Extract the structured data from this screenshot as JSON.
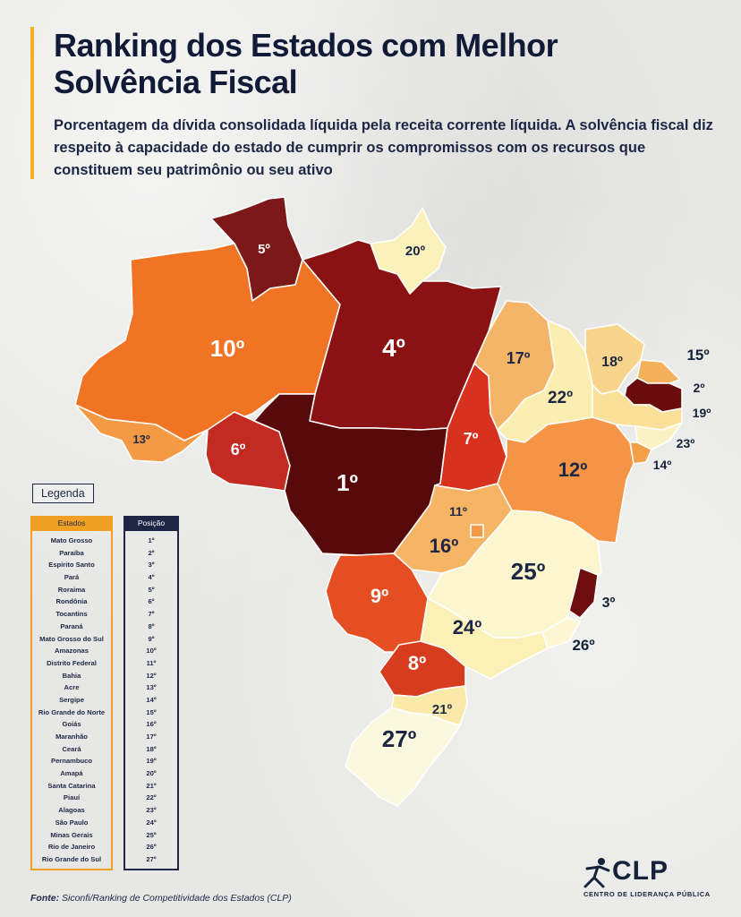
{
  "title": "Ranking dos Estados com Melhor Solvência Fiscal",
  "subtitle": "Porcentagem da dívida consolidada líquida pela receita corrente líquida. A solvência fiscal diz respeito à capacidade do estado de cumprir os compromissos com os recursos que constituem seu patrimônio ou seu ativo",
  "legend": {
    "title": "Legenda",
    "col_states": "Estados",
    "col_position": "Posição",
    "rows": [
      {
        "state": "Mato Grosso",
        "pos": "1º"
      },
      {
        "state": "Paraíba",
        "pos": "2º"
      },
      {
        "state": "Espírito Santo",
        "pos": "3º"
      },
      {
        "state": "Pará",
        "pos": "4º"
      },
      {
        "state": "Roraima",
        "pos": "5º"
      },
      {
        "state": "Rondônia",
        "pos": "6º"
      },
      {
        "state": "Tocantins",
        "pos": "7º"
      },
      {
        "state": "Paraná",
        "pos": "8º"
      },
      {
        "state": "Mato Grosso do Sul",
        "pos": "9º"
      },
      {
        "state": "Amazonas",
        "pos": "10º"
      },
      {
        "state": "Distrito Federal",
        "pos": "11º"
      },
      {
        "state": "Bahia",
        "pos": "12º"
      },
      {
        "state": "Acre",
        "pos": "13º"
      },
      {
        "state": "Sergipe",
        "pos": "14º"
      },
      {
        "state": "Rio Grande do Norte",
        "pos": "15º"
      },
      {
        "state": "Goiás",
        "pos": "16º"
      },
      {
        "state": "Maranhão",
        "pos": "17º"
      },
      {
        "state": "Ceará",
        "pos": "18º"
      },
      {
        "state": "Pernambuco",
        "pos": "19º"
      },
      {
        "state": "Amapá",
        "pos": "20º"
      },
      {
        "state": "Santa Catarina",
        "pos": "21º"
      },
      {
        "state": "Piauí",
        "pos": "22º"
      },
      {
        "state": "Alagoas",
        "pos": "23º"
      },
      {
        "state": "São Paulo",
        "pos": "24º"
      },
      {
        "state": "Minas Gerais",
        "pos": "25º"
      },
      {
        "state": "Rio de Janeiro",
        "pos": "26º"
      },
      {
        "state": "Rio Grande do Sul",
        "pos": "27º"
      }
    ]
  },
  "map": {
    "states": [
      {
        "id": "RR",
        "rank": "5º",
        "color": "#7d1818"
      },
      {
        "id": "AP",
        "rank": "20º",
        "color": "#fbf1bb"
      },
      {
        "id": "AM",
        "rank": "10º",
        "color": "#f07424"
      },
      {
        "id": "PA",
        "rank": "4º",
        "color": "#8a1212"
      },
      {
        "id": "AC",
        "rank": "13º",
        "color": "#f49a45"
      },
      {
        "id": "RO",
        "rank": "6º",
        "color": "#c22a22"
      },
      {
        "id": "MT",
        "rank": "1º",
        "color": "#580a0a"
      },
      {
        "id": "TO",
        "rank": "7º",
        "color": "#d6321e"
      },
      {
        "id": "MA",
        "rank": "17º",
        "color": "#f5b568"
      },
      {
        "id": "PI",
        "rank": "22º",
        "color": "#fbeeb0"
      },
      {
        "id": "CE",
        "rank": "18º",
        "color": "#f9d58c"
      },
      {
        "id": "RN",
        "rank": "15º",
        "color": "#f4b05a"
      },
      {
        "id": "PB",
        "rank": "2º",
        "color": "#6a0c0c"
      },
      {
        "id": "PE",
        "rank": "19º",
        "color": "#fbe09a"
      },
      {
        "id": "AL",
        "rank": "23º",
        "color": "#fbf2c4"
      },
      {
        "id": "SE",
        "rank": "14º",
        "color": "#f4a04a"
      },
      {
        "id": "BA",
        "rank": "12º",
        "color": "#f59445"
      },
      {
        "id": "GO",
        "rank": "16º",
        "color": "#f6b465"
      },
      {
        "id": "DF",
        "rank": "11º",
        "color": "#f39a48"
      },
      {
        "id": "MG",
        "rank": "25º",
        "color": "#fcf6cf"
      },
      {
        "id": "ES",
        "rank": "3º",
        "color": "#6e0d0d"
      },
      {
        "id": "RJ",
        "rank": "26º",
        "color": "#fdf7d4"
      },
      {
        "id": "SP",
        "rank": "24º",
        "color": "#fbf0b6"
      },
      {
        "id": "MS",
        "rank": "9º",
        "color": "#e54e22"
      },
      {
        "id": "PR",
        "rank": "8º",
        "color": "#d63c1e"
      },
      {
        "id": "SC",
        "rank": "21º",
        "color": "#fae9a8"
      },
      {
        "id": "RS",
        "rank": "27º",
        "color": "#fcf8df"
      }
    ]
  },
  "source": {
    "label": "Fonte:",
    "text": "Siconfi/Ranking de Competitividade dos Estados (CLP)"
  },
  "logo": {
    "name": "CLP",
    "subtitle": "CENTRO DE LIDERANÇA PÚBLICA"
  }
}
